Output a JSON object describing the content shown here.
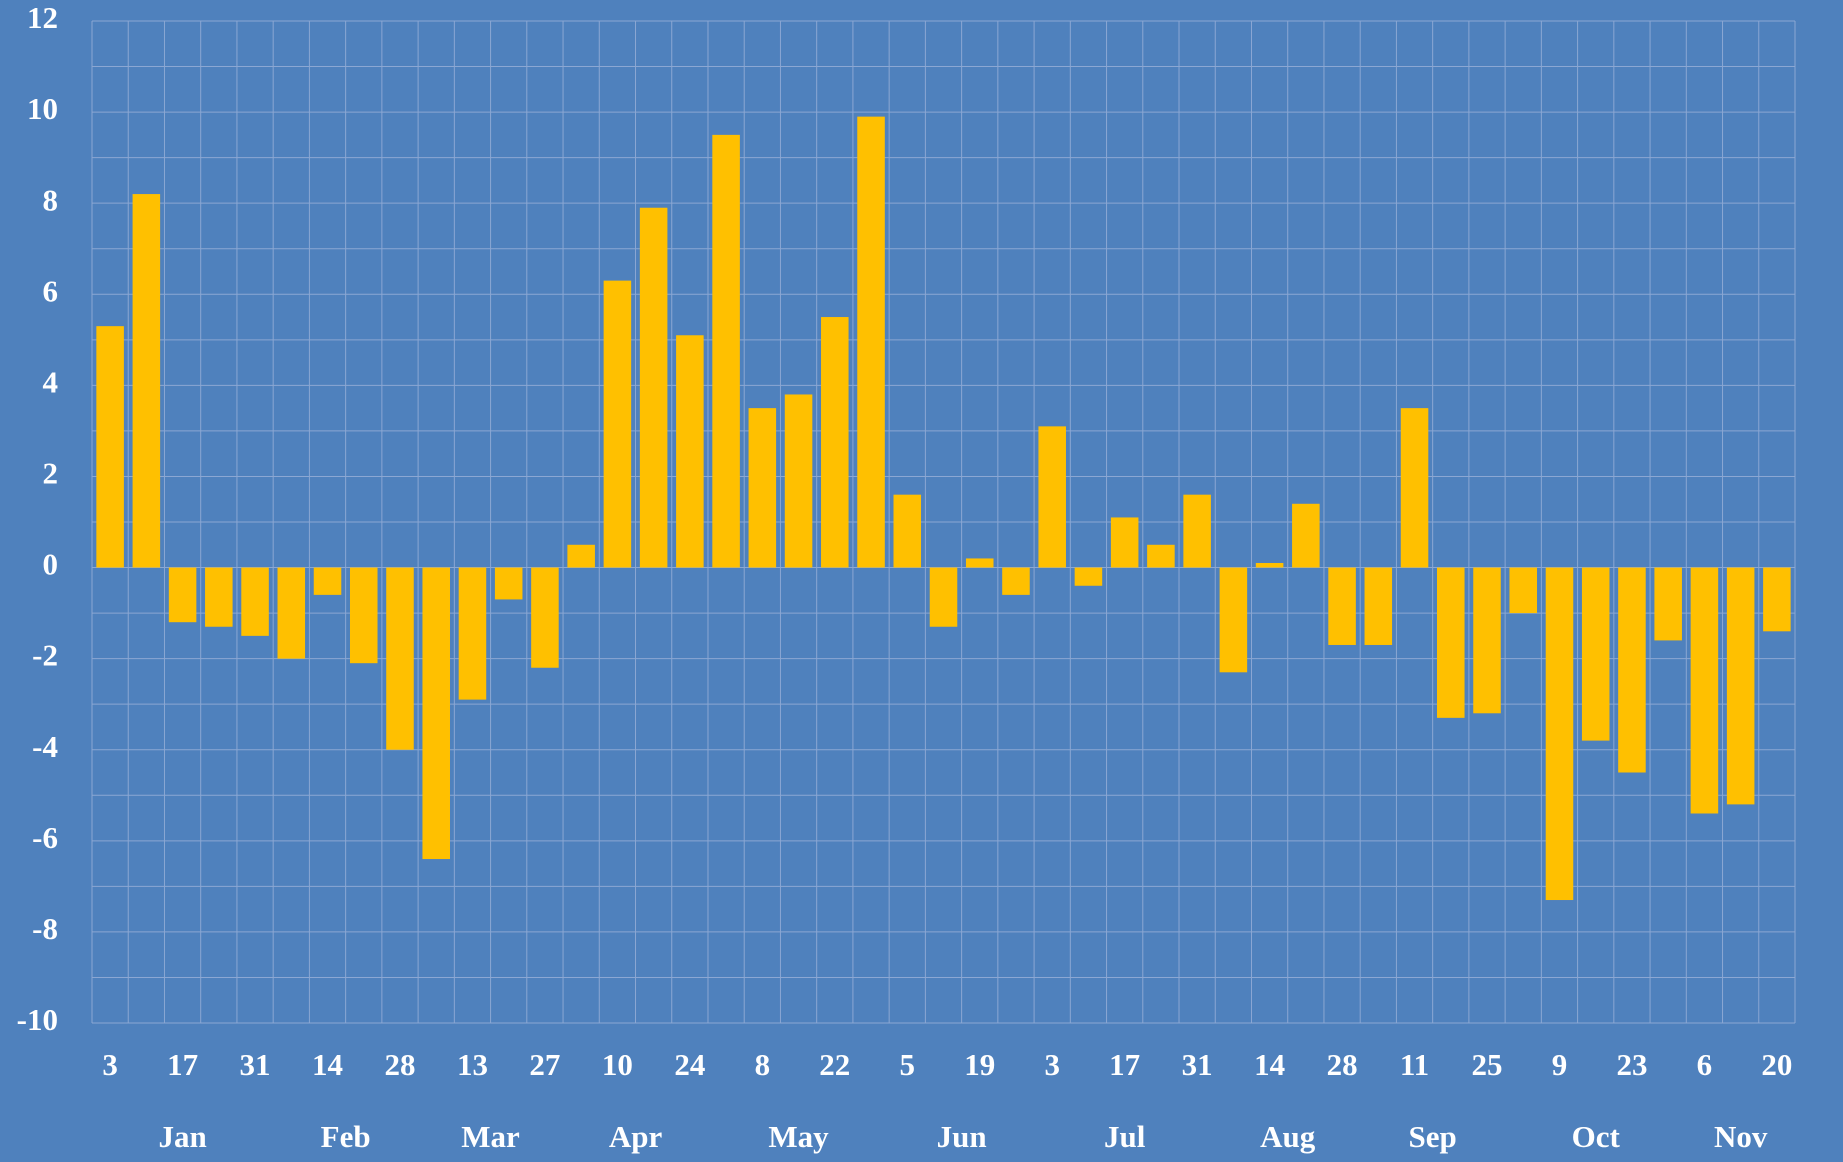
{
  "chart_data": {
    "type": "bar",
    "color": "#ffc000",
    "background": "#4f81bd",
    "grid": true,
    "y_minor_grid": true,
    "categories": [
      "3",
      null,
      "17",
      null,
      "31",
      null,
      "14",
      null,
      "28",
      null,
      "13",
      null,
      "27",
      null,
      "10",
      null,
      "24",
      null,
      "8",
      null,
      "22",
      null,
      "5",
      null,
      "19",
      null,
      "3",
      null,
      "17",
      null,
      "31",
      null,
      "14",
      null,
      "28",
      null,
      "11",
      null,
      "25",
      null,
      "9",
      null,
      "23",
      null,
      "6",
      null,
      "20"
    ],
    "values": [
      5.3,
      8.2,
      -1.2,
      -1.3,
      -1.5,
      -2.0,
      -0.6,
      -2.1,
      -4.0,
      -6.4,
      -2.9,
      -0.7,
      -2.2,
      0.5,
      6.3,
      7.9,
      5.1,
      9.5,
      3.5,
      3.8,
      5.5,
      9.9,
      1.6,
      -1.3,
      0.2,
      -0.6,
      3.1,
      -0.4,
      1.1,
      0.5,
      1.6,
      -2.3,
      0.1,
      1.4,
      -1.7,
      -1.7,
      3.5,
      -3.3,
      -3.2,
      -1.0,
      -7.3,
      -3.8,
      -4.5,
      -1.6,
      -5.4,
      -5.2,
      -1.4
    ],
    "month_groups": [
      {
        "name": "Jan",
        "count": 5
      },
      {
        "name": "Feb",
        "count": 4
      },
      {
        "name": "Mar",
        "count": 4
      },
      {
        "name": "Apr",
        "count": 4
      },
      {
        "name": "May",
        "count": 5
      },
      {
        "name": "Jun",
        "count": 4
      },
      {
        "name": "Jul",
        "count": 5
      },
      {
        "name": "Aug",
        "count": 4
      },
      {
        "name": "Sep",
        "count": 4
      },
      {
        "name": "Oct",
        "count": 5
      },
      {
        "name": "Nov",
        "count": 3
      }
    ],
    "ylim": [
      -10,
      12
    ],
    "yticks": [
      -10,
      -8,
      -6,
      -4,
      -2,
      0,
      2,
      4,
      6,
      8,
      10,
      12
    ]
  }
}
